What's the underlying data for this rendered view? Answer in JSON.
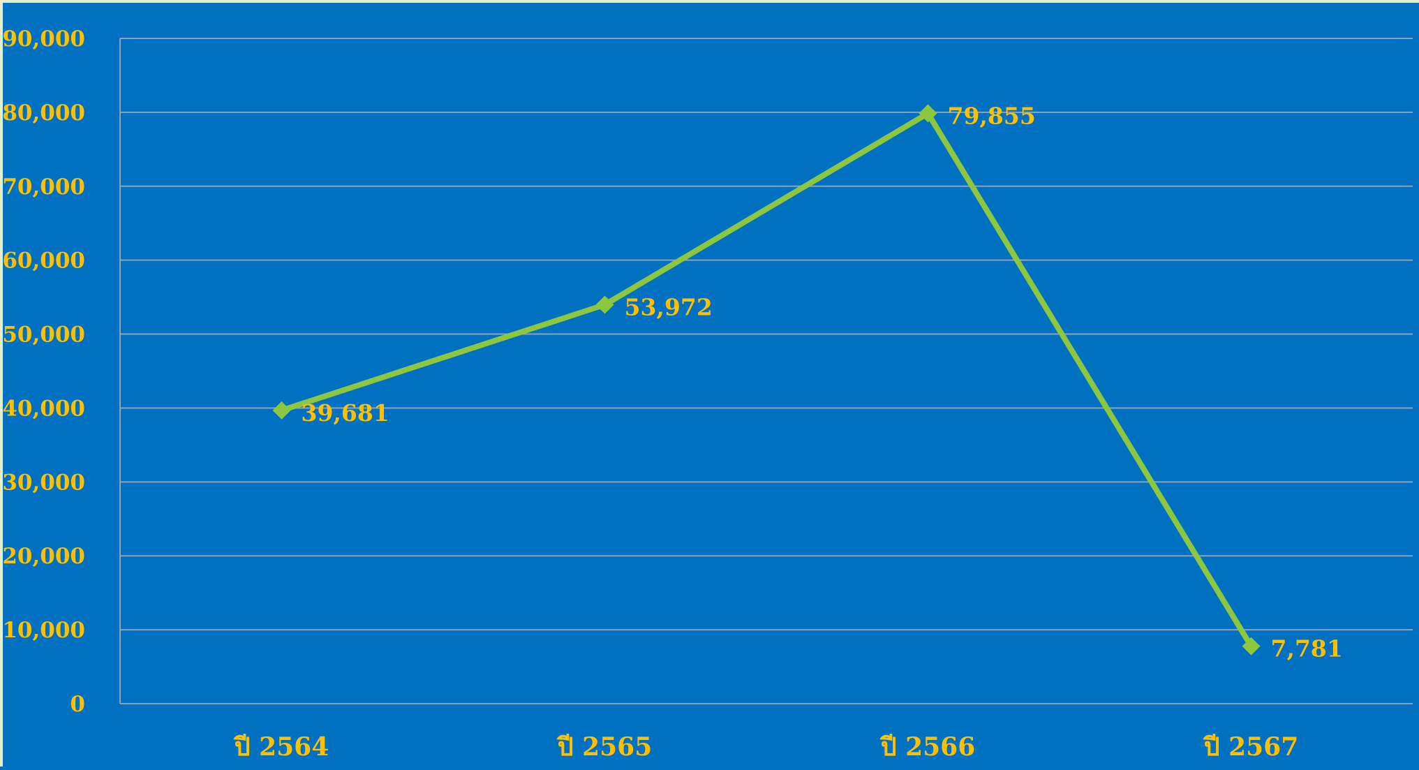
{
  "chart_data": {
    "type": "line",
    "categories": [
      "ปี 2564",
      "ปี 2565",
      "ปี 2566",
      "ปี 2567"
    ],
    "series": [
      {
        "values": [
          39681,
          53972,
          79855,
          7781
        ]
      }
    ],
    "data_labels": [
      "39,681",
      "53,972",
      "79,855",
      "7,781"
    ],
    "ylim": [
      0,
      90000
    ],
    "yticks": [
      0,
      10000,
      20000,
      30000,
      40000,
      50000,
      60000,
      70000,
      80000,
      90000
    ],
    "ytick_labels": [
      "0",
      "10,000",
      "20,000",
      "30,000",
      "40,000",
      "50,000",
      "60,000",
      "70,000",
      "80,000",
      "90,000"
    ],
    "grid": true,
    "legend": "none",
    "marker": "diamond"
  },
  "colors": {
    "background": "#0070c0",
    "series": "#8dc63f",
    "text": "#ffc000",
    "grid": "#8ea3b8"
  }
}
